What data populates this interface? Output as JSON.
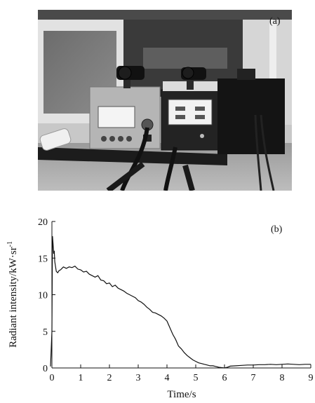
{
  "figure": {
    "photo_label": "(a)",
    "chart_label": "(b)"
  },
  "chart_data": {
    "type": "line",
    "xlabel": "Time/s",
    "ylabel_main": "Radiant intensity/kW·sr",
    "ylabel_sup": "-1",
    "xlim": [
      0,
      9
    ],
    "ylim": [
      0,
      20
    ],
    "xticks": [
      "0",
      "1",
      "2",
      "3",
      "4",
      "5",
      "6",
      "7",
      "8",
      "9"
    ],
    "yticks": [
      "0",
      "5",
      "10",
      "15",
      "20"
    ],
    "grid": false,
    "series": [
      {
        "x": [
          -0.05,
          0.0,
          0.02,
          0.04,
          0.06,
          0.08,
          0.1,
          0.12,
          0.15,
          0.2,
          0.25,
          0.3,
          0.35,
          0.4,
          0.5,
          0.6,
          0.7,
          0.8,
          0.9,
          1.0,
          1.1,
          1.2,
          1.3,
          1.4,
          1.5,
          1.6,
          1.7,
          1.8,
          1.9,
          2.0,
          2.1,
          2.2,
          2.3,
          2.4,
          2.5,
          2.6,
          2.7,
          2.8,
          2.9,
          3.0,
          3.1,
          3.2,
          3.3,
          3.4,
          3.5,
          3.6,
          3.7,
          3.8,
          3.9,
          4.0,
          4.1,
          4.2,
          4.3,
          4.4,
          4.5,
          4.6,
          4.7,
          4.8,
          4.9,
          5.0,
          5.1,
          5.2,
          5.3,
          5.4,
          5.5,
          5.6,
          5.7,
          5.8,
          5.9,
          6.0,
          6.1,
          6.2,
          6.4,
          6.6,
          6.8,
          7.0,
          7.2,
          7.4,
          7.6,
          7.8,
          8.0,
          8.2,
          8.4,
          8.6,
          8.8,
          9.0
        ],
        "y": [
          0.2,
          5.0,
          18.0,
          17.0,
          15.6,
          16.0,
          14.5,
          14.0,
          13.2,
          13.0,
          13.3,
          13.4,
          13.6,
          13.8,
          13.6,
          13.8,
          13.7,
          13.9,
          13.5,
          13.4,
          13.1,
          13.2,
          12.8,
          12.6,
          12.4,
          12.6,
          12.0,
          11.9,
          11.5,
          11.6,
          11.1,
          11.3,
          10.9,
          10.7,
          10.5,
          10.2,
          10.0,
          9.8,
          9.6,
          9.2,
          9.0,
          8.7,
          8.3,
          8.0,
          7.6,
          7.5,
          7.3,
          7.1,
          6.8,
          6.4,
          5.5,
          4.6,
          3.9,
          3.0,
          2.6,
          2.1,
          1.7,
          1.4,
          1.1,
          0.9,
          0.7,
          0.6,
          0.5,
          0.4,
          0.3,
          0.3,
          0.2,
          0.1,
          0.05,
          0.0,
          0.1,
          0.25,
          0.3,
          0.35,
          0.4,
          0.4,
          0.45,
          0.45,
          0.5,
          0.45,
          0.5,
          0.55,
          0.5,
          0.45,
          0.5,
          0.5
        ]
      }
    ]
  }
}
